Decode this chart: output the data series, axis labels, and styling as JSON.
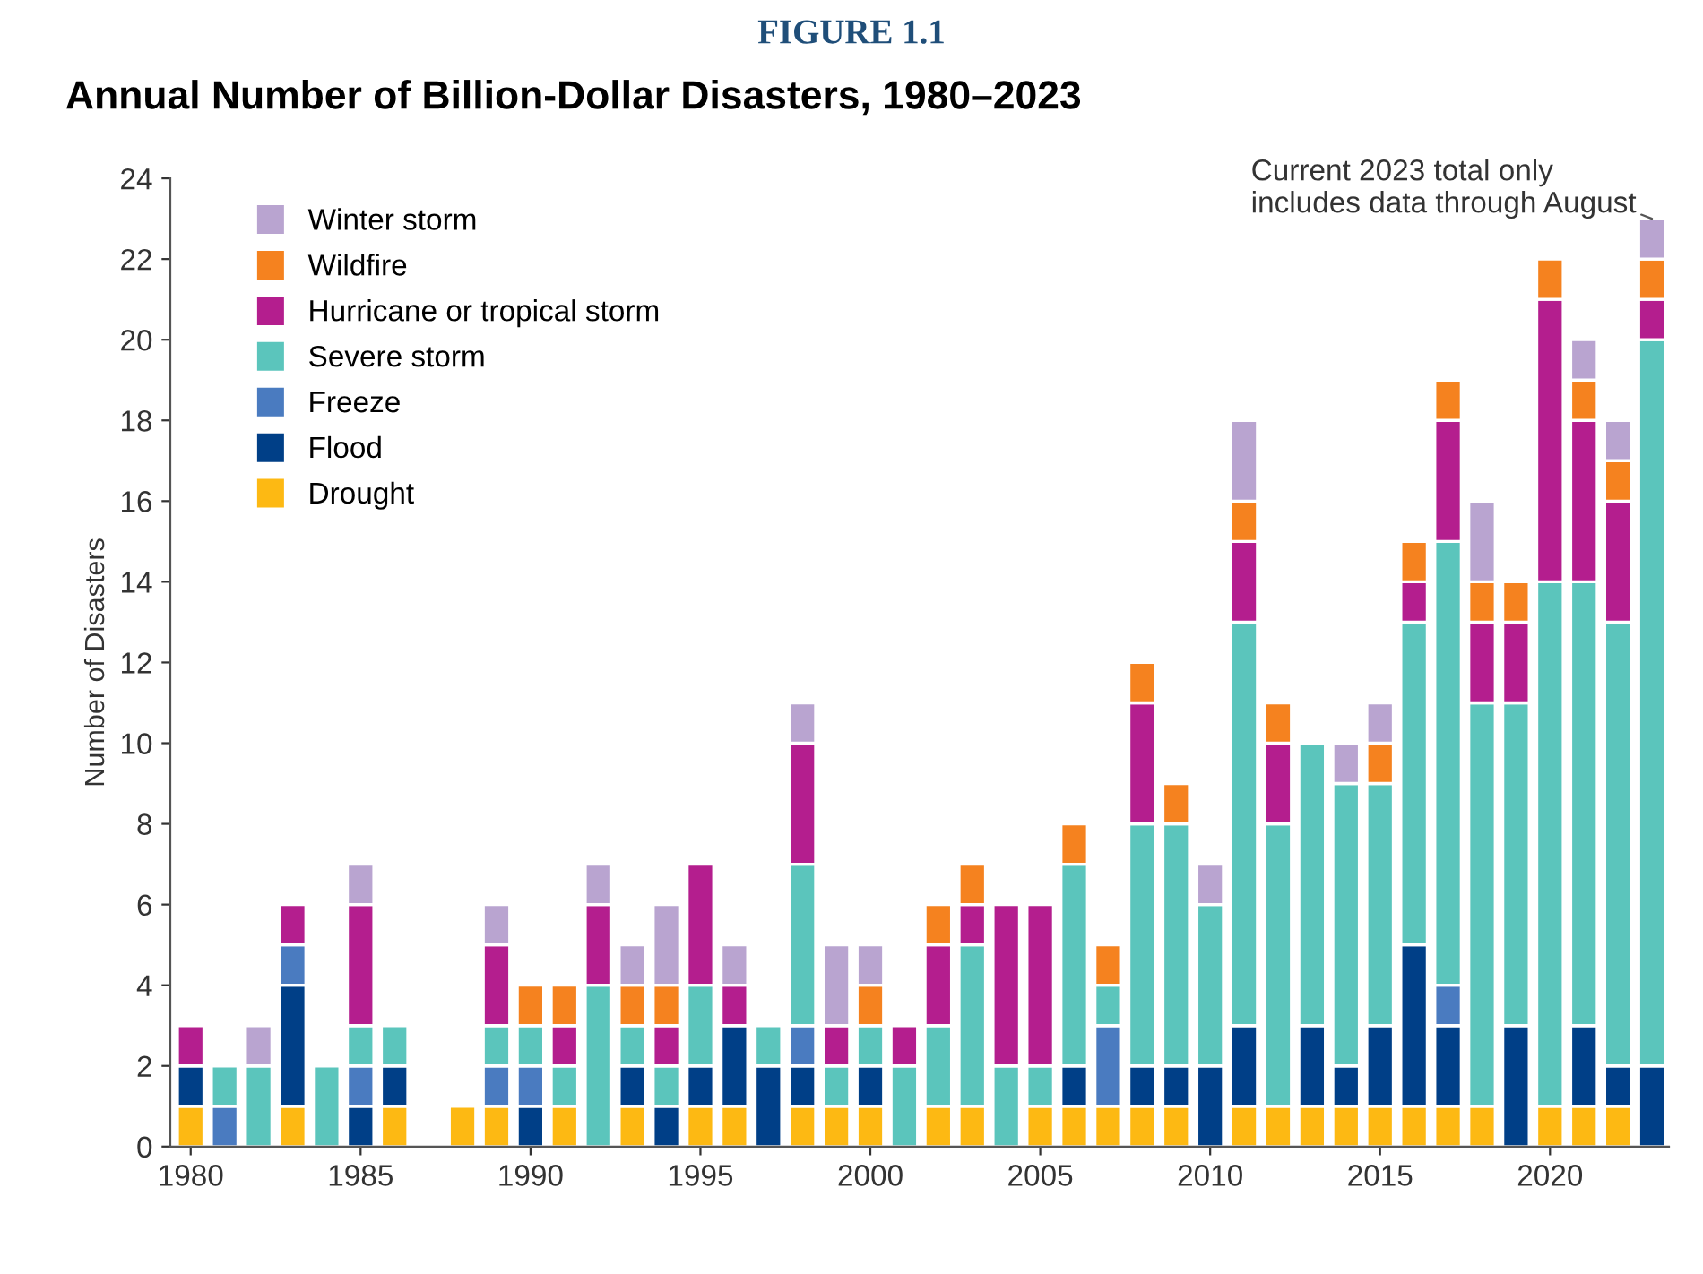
{
  "chart_data": {
    "type": "bar",
    "stacked": true,
    "title": "Annual Number of Billion-Dollar Disasters, 1980–2023",
    "ylabel": "Number of Disasters",
    "annotations": [
      "FIGURE 1.1",
      {
        "text": "Current 2023 total only\nincludes data through August",
        "x": 2023,
        "y": 23
      }
    ],
    "x": [
      1980,
      1981,
      1982,
      1983,
      1984,
      1985,
      1986,
      1987,
      1988,
      1989,
      1990,
      1991,
      1992,
      1993,
      1994,
      1995,
      1996,
      1997,
      1998,
      1999,
      2000,
      2001,
      2002,
      2003,
      2004,
      2005,
      2006,
      2007,
      2008,
      2009,
      2010,
      2011,
      2012,
      2013,
      2014,
      2015,
      2016,
      2017,
      2018,
      2019,
      2020,
      2021,
      2022,
      2023
    ],
    "xlim": [
      1979.4,
      2023.5
    ],
    "xticks": [
      1980,
      1985,
      1990,
      1995,
      2000,
      2005,
      2010,
      2015,
      2020
    ],
    "ylim": [
      0,
      24
    ],
    "yticks": [
      0,
      2,
      4,
      6,
      8,
      10,
      12,
      14,
      16,
      18,
      20,
      22,
      24
    ],
    "grid": false,
    "legend": "top left",
    "series": [
      {
        "name": "Drought",
        "color": "#fdb913",
        "values": [
          1,
          0,
          0,
          1,
          0,
          0,
          1,
          0,
          1,
          1,
          0,
          1,
          0,
          1,
          0,
          1,
          1,
          0,
          1,
          1,
          1,
          0,
          1,
          1,
          0,
          1,
          1,
          1,
          1,
          1,
          0,
          1,
          1,
          1,
          1,
          1,
          1,
          1,
          1,
          0,
          1,
          1,
          1,
          0
        ]
      },
      {
        "name": "Flood",
        "color": "#003f87",
        "values": [
          1,
          0,
          0,
          3,
          0,
          1,
          1,
          0,
          0,
          0,
          1,
          0,
          0,
          1,
          1,
          1,
          2,
          2,
          1,
          0,
          1,
          0,
          0,
          0,
          0,
          0,
          1,
          0,
          1,
          1,
          2,
          2,
          0,
          2,
          1,
          2,
          4,
          2,
          0,
          3,
          0,
          2,
          1,
          2
        ]
      },
      {
        "name": "Freeze",
        "color": "#4a7bc0",
        "values": [
          0,
          1,
          0,
          1,
          0,
          1,
          0,
          0,
          0,
          1,
          1,
          0,
          0,
          0,
          0,
          0,
          0,
          0,
          1,
          0,
          0,
          0,
          0,
          0,
          0,
          0,
          0,
          2,
          0,
          0,
          0,
          0,
          0,
          0,
          0,
          0,
          0,
          1,
          0,
          0,
          0,
          0,
          0,
          0
        ]
      },
      {
        "name": "Severe storm",
        "color": "#5bc5bc",
        "values": [
          0,
          1,
          2,
          0,
          2,
          1,
          1,
          0,
          0,
          1,
          1,
          1,
          4,
          1,
          1,
          2,
          0,
          1,
          4,
          1,
          1,
          2,
          2,
          4,
          2,
          1,
          5,
          1,
          6,
          6,
          4,
          10,
          7,
          7,
          7,
          6,
          8,
          11,
          10,
          8,
          13,
          11,
          11,
          18
        ]
      },
      {
        "name": "Hurricane or tropical storm",
        "color": "#b41e8e",
        "values": [
          1,
          0,
          0,
          1,
          0,
          3,
          0,
          0,
          0,
          2,
          0,
          1,
          2,
          0,
          1,
          3,
          1,
          0,
          3,
          1,
          0,
          1,
          2,
          1,
          4,
          4,
          0,
          0,
          3,
          0,
          0,
          2,
          2,
          0,
          0,
          0,
          1,
          3,
          2,
          2,
          7,
          4,
          3,
          1
        ]
      },
      {
        "name": "Wildfire",
        "color": "#f5821f",
        "values": [
          0,
          0,
          0,
          0,
          0,
          0,
          0,
          0,
          0,
          0,
          1,
          1,
          0,
          1,
          1,
          0,
          0,
          0,
          0,
          0,
          1,
          0,
          1,
          1,
          0,
          0,
          1,
          1,
          1,
          1,
          0,
          1,
          1,
          0,
          0,
          1,
          1,
          1,
          1,
          1,
          1,
          1,
          1,
          1
        ]
      },
      {
        "name": "Winter storm",
        "color": "#b9a4d0",
        "values": [
          0,
          0,
          1,
          0,
          0,
          1,
          0,
          0,
          0,
          1,
          0,
          0,
          1,
          1,
          2,
          0,
          1,
          0,
          1,
          2,
          1,
          0,
          0,
          0,
          0,
          0,
          0,
          0,
          0,
          0,
          1,
          2,
          0,
          0,
          1,
          1,
          0,
          0,
          2,
          0,
          0,
          1,
          1,
          1
        ]
      }
    ]
  }
}
